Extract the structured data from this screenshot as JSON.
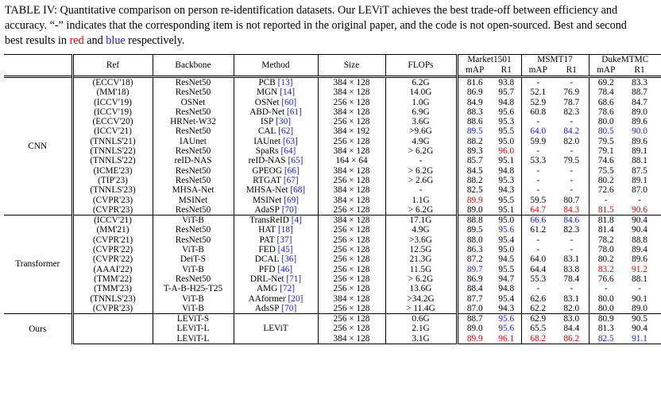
{
  "caption": {
    "part1": "TABLE IV: Quantitative comparison on person re-identification datasets. Our LEViT achieves the best trade-off between efficiency and accuracy. “-” indicates that the corresponding item is not reported in the original paper, and the code is not open-sourced. Best and second best results in ",
    "red_word": "red",
    "and_word": " and ",
    "blue_word": "blue",
    "part2": " respectively."
  },
  "colors": {
    "best": "#e00000",
    "second": "#1a1adc"
  },
  "headers": {
    "ref": "Ref",
    "backbone": "Backbone",
    "method": "Method",
    "size": "Size",
    "flops": "FLOPs",
    "market": "Market1501",
    "msmt": "MSMT17",
    "duke": "DukeMTMC",
    "map": "mAP",
    "r1": "R1"
  },
  "groups": [
    {
      "name": "CNN",
      "rows": [
        {
          "ref": "(ECCV'18)",
          "backbone": "ResNet50",
          "method": "PCB",
          "cite": "[13]",
          "size": "384 × 128",
          "flops": "6.2G",
          "m1": "81.6",
          "m2": "93.8",
          "s1": "-",
          "s2": "-",
          "d1": "69.2",
          "d2": "83.3"
        },
        {
          "ref": "(MM'18)",
          "backbone": "ResNet50",
          "method": "MGN",
          "cite": "[14]",
          "size": "384 × 128",
          "flops": "14.0G",
          "m1": "86.9",
          "m2": "95.7",
          "s1": "52.1",
          "s2": "76.9",
          "d1": "78.4",
          "d2": "88.7"
        },
        {
          "ref": "(ICCV'19)",
          "backbone": "OSNet",
          "method": "OSNet",
          "cite": "[60]",
          "size": "256 × 128",
          "flops": "1.0G",
          "m1": "84.9",
          "m2": "94.8",
          "s1": "52.9",
          "s2": "78.7",
          "d1": "68.6",
          "d2": "84.7"
        },
        {
          "ref": "(ICCV'19)",
          "backbone": "ResNet50",
          "method": "ABD-Net",
          "cite": "[61]",
          "size": "384 × 128",
          "flops": "6.9G",
          "m1": "88.3",
          "m2": "95.6",
          "s1": "60.8",
          "s2": "82.3",
          "d1": "78.6",
          "d2": "89.0"
        },
        {
          "ref": "(ECCV'20)",
          "backbone": "HRNet-W32",
          "method": "ISP",
          "cite": "[30]",
          "size": "256 × 128",
          "flops": "3.6G",
          "m1": "88.6",
          "m2": "95.3",
          "s1": "-",
          "s2": "-",
          "d1": "80.0",
          "d2": "89.6"
        },
        {
          "ref": "(ICCV'21)",
          "backbone": "ResNet50",
          "method": "CAL",
          "cite": "[62]",
          "size": "384 × 192",
          "flops": ">9.6G",
          "m1": "89.5",
          "m2": "95.5",
          "s1": "64.0",
          "s2": "84.2",
          "d1": "80.5",
          "d2": "90.0",
          "c": {
            "m1": "b",
            "s1": "b",
            "s2": "b",
            "d1": "b",
            "d2": "b"
          }
        },
        {
          "ref": "(TNNLS'21)",
          "backbone": "IAUnet",
          "method": "IAUnet",
          "cite": "[63]",
          "size": "256 × 128",
          "flops": "4.9G",
          "m1": "88.2",
          "m2": "95.0",
          "s1": "59.9",
          "s2": "82.0",
          "d1": "79.5",
          "d2": "89.6"
        },
        {
          "ref": "(TNNLS'22)",
          "backbone": "ResNet50",
          "method": "SpaRs",
          "cite": "[64]",
          "size": "384 × 128",
          "flops": "> 6.2G",
          "m1": "89.3",
          "m2": "96.0",
          "s1": "-",
          "s2": "-",
          "d1": "79.1",
          "d2": "89.1",
          "c": {
            "m2": "r"
          }
        },
        {
          "ref": "(TNNLS'22)",
          "backbone": "reID-NAS",
          "method": "reID-NAS",
          "cite": "[65]",
          "size": "164 × 64",
          "flops": "-",
          "m1": "85.7",
          "m2": "95.1",
          "s1": "53.3",
          "s2": "79.5",
          "d1": "74.6",
          "d2": "88.1"
        },
        {
          "ref": "(ICME'23)",
          "backbone": "ResNet50",
          "method": "GPEOG",
          "cite": "[66]",
          "size": "384 × 128",
          "flops": "> 6.2G",
          "m1": "84.5",
          "m2": "94.8",
          "s1": "-",
          "s2": "-",
          "d1": "75.5",
          "d2": "87.5"
        },
        {
          "ref": "(TIP'23)",
          "backbone": "ResNet50",
          "method": "RTGAT",
          "cite": "[67]",
          "size": "256 × 128",
          "flops": "> 2.6G",
          "m1": "88.2",
          "m2": "95.3",
          "s1": "-",
          "s2": "-",
          "d1": "80.2",
          "d2": "89.1"
        },
        {
          "ref": "(TNNLS'23)",
          "backbone": "MHSA-Net",
          "method": "MHSA-Net",
          "cite": "[68]",
          "size": "384 × 128",
          "flops": "-",
          "m1": "82.5",
          "m2": "94.3",
          "s1": "-",
          "s2": "-",
          "d1": "72.6",
          "d2": "87.0"
        },
        {
          "ref": "(CVPR'23)",
          "backbone": "MSINet",
          "method": "MSINet",
          "cite": "[69]",
          "size": "384 × 128",
          "flops": "1.1G",
          "m1": "89.9",
          "m2": "95.5",
          "s1": "59.5",
          "s2": "80.7",
          "d1": "-",
          "d2": "-",
          "c": {
            "m1": "r"
          }
        },
        {
          "ref": "(CVPR'23)",
          "backbone": "ResNet50",
          "method": "AdaSP",
          "cite": "[70]",
          "size": "256 × 128",
          "flops": "> 6.2G",
          "m1": "89.0",
          "m2": "95.1",
          "s1": "64.7",
          "s2": "84.3",
          "d1": "81.5",
          "d2": "90.6",
          "c": {
            "s1": "r",
            "s2": "r",
            "d1": "r",
            "d2": "r"
          }
        }
      ]
    },
    {
      "name": "Transformer",
      "rows": [
        {
          "ref": "(ICCV'21)",
          "backbone": "ViT-B",
          "method": "TransReID",
          "cite": "[4]",
          "size": "384 × 128",
          "flops": "17.1G",
          "m1": "88.8",
          "m2": "95.0",
          "s1": "66.6",
          "s2": "84.6",
          "d1": "81.8",
          "d2": "90.4",
          "c": {
            "s1": "b",
            "s2": "b"
          }
        },
        {
          "ref": "(MM'21)",
          "backbone": "ResNet50",
          "method": "HAT",
          "cite": "[18]",
          "size": "256 × 128",
          "flops": "4.9G",
          "m1": "89.5",
          "m2": "95.6",
          "s1": "61.2",
          "s2": "82.3",
          "d1": "81.4",
          "d2": "90.4",
          "c": {
            "m2": "b"
          }
        },
        {
          "ref": "(CVPR'21)",
          "backbone": "ResNet50",
          "method": "PAT",
          "cite": "[37]",
          "size": "256 × 128",
          "flops": ">3.6G",
          "m1": "88.0",
          "m2": "95.4",
          "s1": "-",
          "s2": "-",
          "d1": "78.2",
          "d2": "88.8"
        },
        {
          "ref": "(CVPR'22)",
          "backbone": "ViT-B",
          "method": "FED",
          "cite": "[45]",
          "size": "256 × 128",
          "flops": "12.5G",
          "m1": "86.3",
          "m2": "95.0",
          "s1": "-",
          "s2": "-",
          "d1": "78.0",
          "d2": "89.4"
        },
        {
          "ref": "(CVPR'22)",
          "backbone": "DeiT-S",
          "method": "DCAL",
          "cite": "[36]",
          "size": "256 × 128",
          "flops": "21.3G",
          "m1": "87.2",
          "m2": "94.5",
          "s1": "64.0",
          "s2": "83.1",
          "d1": "80.2",
          "d2": "89.6"
        },
        {
          "ref": "(AAAI'22)",
          "backbone": "ViT-B",
          "method": "PFD",
          "cite": "[46]",
          "size": "256 × 128",
          "flops": "11.5G",
          "m1": "89.7",
          "m2": "95.5",
          "s1": "64.4",
          "s2": "83.8",
          "d1": "83.2",
          "d2": "91.2",
          "c": {
            "m1": "b",
            "d1": "r",
            "d2": "r"
          }
        },
        {
          "ref": "(TMM'22)",
          "backbone": "ResNet50",
          "method": "DRL-Net",
          "cite": "[71]",
          "size": "256 × 128",
          "flops": "> 6.2G",
          "m1": "86.9",
          "m2": "94.7",
          "s1": "55.3",
          "s2": "78.4",
          "d1": "76.6",
          "d2": "88.1"
        },
        {
          "ref": "(TMM'23)",
          "backbone": "T-A-B-H25-T25",
          "method": "AMG",
          "cite": "[72]",
          "size": "256 × 128",
          "flops": "13.6G",
          "m1": "88.4",
          "m2": "94.8",
          "s1": "-",
          "s2": "-",
          "d1": "-",
          "d2": "-"
        },
        {
          "ref": "(TNNLS'23)",
          "backbone": "ViT-B",
          "method": "AAformer",
          "cite": "[20]",
          "size": "384 × 128",
          "flops": ">34.2G",
          "m1": "87.7",
          "m2": "95.4",
          "s1": "62.6",
          "s2": "83.1",
          "d1": "80.0",
          "d2": "90.1"
        },
        {
          "ref": "(CVPR'23)",
          "backbone": "ViT-B",
          "method": "AdsSP",
          "cite": "[70]",
          "size": "256 × 128",
          "flops": "> 11.4G",
          "m1": "87.0",
          "m2": "94.3",
          "s1": "62.2",
          "s2": "82.0",
          "d1": "80.0",
          "d2": "89.0"
        }
      ]
    },
    {
      "name": "Ours",
      "rows": [
        {
          "ref": "",
          "backbone": "LEViT-S",
          "method": "",
          "cite": "",
          "size": "256 × 128",
          "flops": "0.6G",
          "m1": "88.7",
          "m2": "95.6",
          "s1": "62.9",
          "s2": "83.0",
          "d1": "80.9",
          "d2": "90.5",
          "c": {
            "m2": "b"
          }
        },
        {
          "ref": "",
          "backbone": "LEViT-L",
          "method": "LEViT",
          "cite": "",
          "size": "256 × 128",
          "flops": "2.1G",
          "m1": "89.0",
          "m2": "95.6",
          "s1": "65.5",
          "s2": "84.4",
          "d1": "81.3",
          "d2": "90.4",
          "c": {
            "m2": "b"
          }
        },
        {
          "ref": "",
          "backbone": "LEViT-L",
          "method": "",
          "cite": "",
          "size": "384 × 128",
          "flops": "3.1G",
          "m1": "89.9",
          "m2": "96.1",
          "s1": "68.2",
          "s2": "86.2",
          "d1": "82.5",
          "d2": "91.1",
          "c": {
            "m1": "r",
            "m2": "r",
            "s1": "r",
            "s2": "r",
            "d1": "b",
            "d2": "b"
          }
        }
      ]
    }
  ]
}
